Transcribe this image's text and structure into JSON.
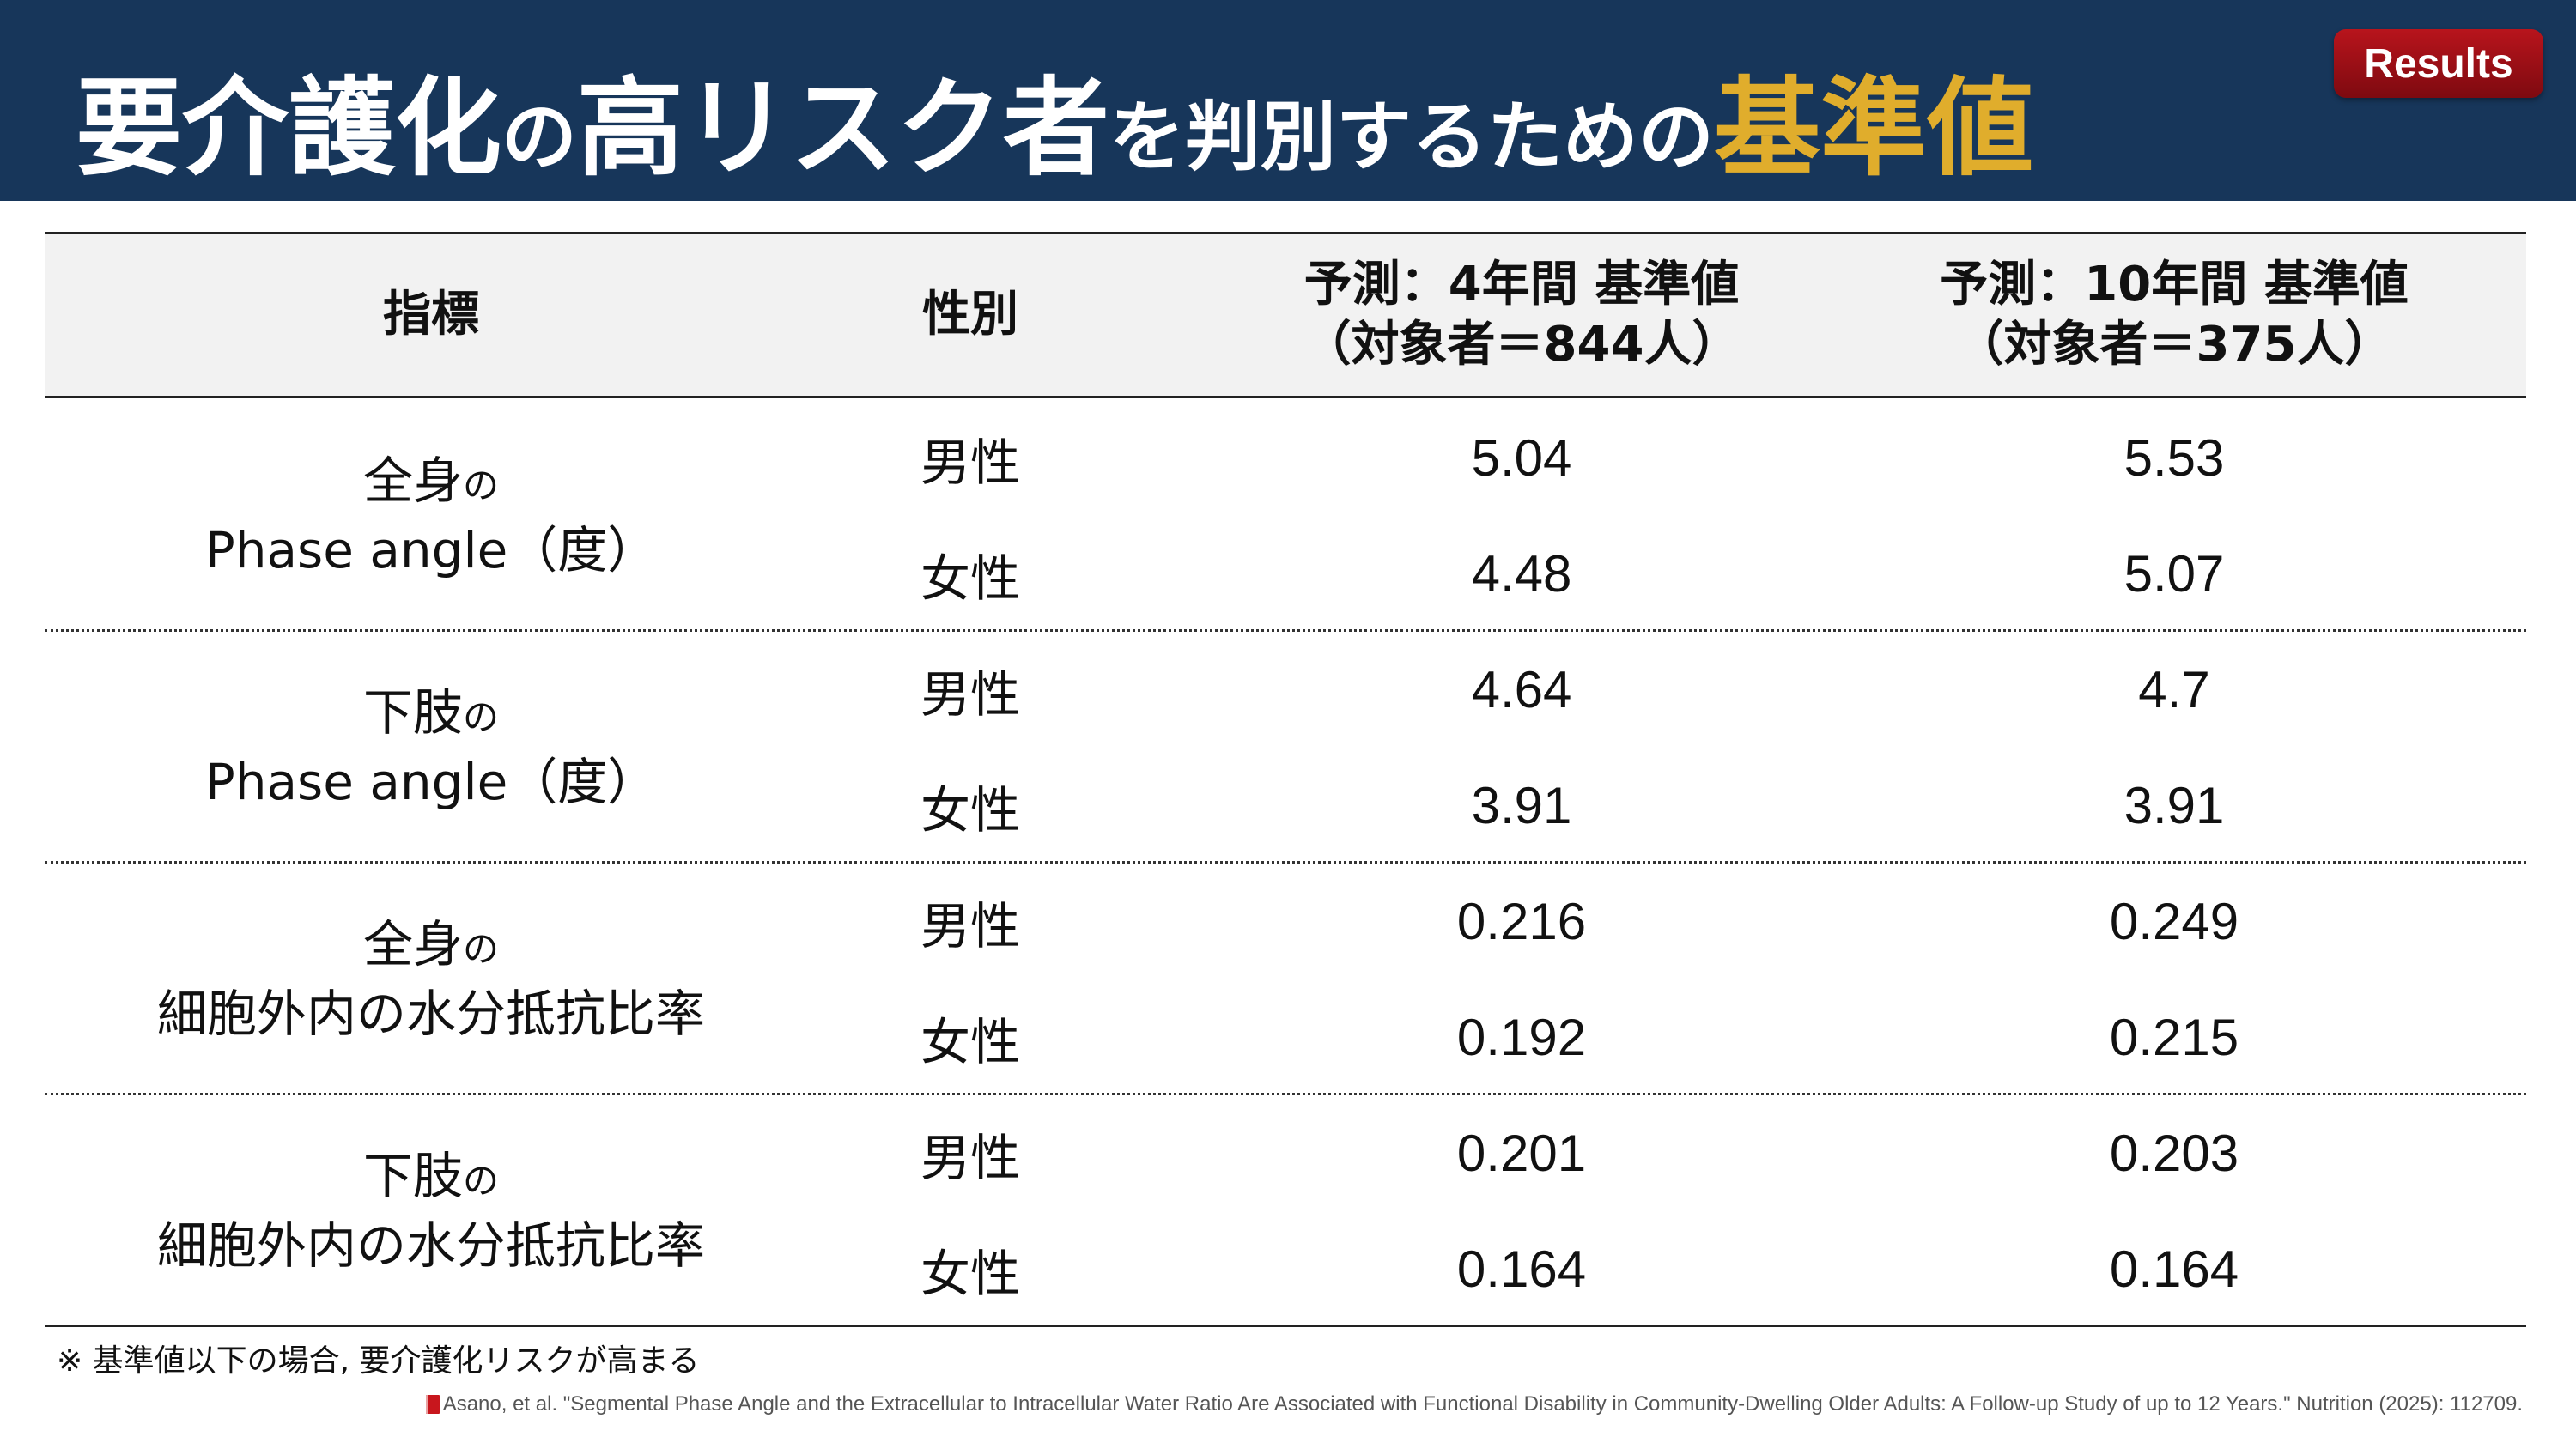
{
  "header": {
    "title_parts": {
      "p1": "要介護化",
      "p2": "の",
      "p3": "高リスク者",
      "p4": "を判別するための",
      "p5": "基準値"
    },
    "badge": "Results",
    "accent_color": "#e0ad2c",
    "background_color": "#17365a"
  },
  "table": {
    "headers": {
      "metric": "指標",
      "sex": "性別",
      "four_year_line1": "予測：4年間 基準値",
      "four_year_line2": "（対象者＝844人）",
      "ten_year_line1": "予測：10年間 基準値",
      "ten_year_line2": "（対象者＝375人）"
    },
    "groups": [
      {
        "metric_line1": "全身",
        "metric_suffix": "の",
        "metric_line2": "Phase angle（度）",
        "rows": [
          {
            "sex": "男性",
            "four": "5.04",
            "ten": "5.53"
          },
          {
            "sex": "女性",
            "four": "4.48",
            "ten": "5.07"
          }
        ]
      },
      {
        "metric_line1": "下肢",
        "metric_suffix": "の",
        "metric_line2": "Phase angle（度）",
        "rows": [
          {
            "sex": "男性",
            "four": "4.64",
            "ten": "4.7"
          },
          {
            "sex": "女性",
            "four": "3.91",
            "ten": "3.91"
          }
        ]
      },
      {
        "metric_line1": "全身",
        "metric_suffix": "の",
        "metric_line2": "細胞外内の水分抵抗比率",
        "rows": [
          {
            "sex": "男性",
            "four": "0.216",
            "ten": "0.249"
          },
          {
            "sex": "女性",
            "four": "0.192",
            "ten": "0.215"
          }
        ]
      },
      {
        "metric_line1": "下肢",
        "metric_suffix": "の",
        "metric_line2": "細胞外内の水分抵抗比率",
        "rows": [
          {
            "sex": "男性",
            "four": "0.201",
            "ten": "0.203"
          },
          {
            "sex": "女性",
            "four": "0.164",
            "ten": "0.164"
          }
        ]
      }
    ]
  },
  "footer": {
    "note": "※ 基準値以下の場合, 要介護化リスクが高まる",
    "reference_icon": "book-icon",
    "reference": "Asano, et al. \"Segmental Phase Angle and the Extracellular to Intracellular Water Ratio Are Associated with Functional Disability in Community-Dwelling Older Adults:  A Follow-up Study of up to 12 Years.\" Nutrition (2025): 112709."
  }
}
